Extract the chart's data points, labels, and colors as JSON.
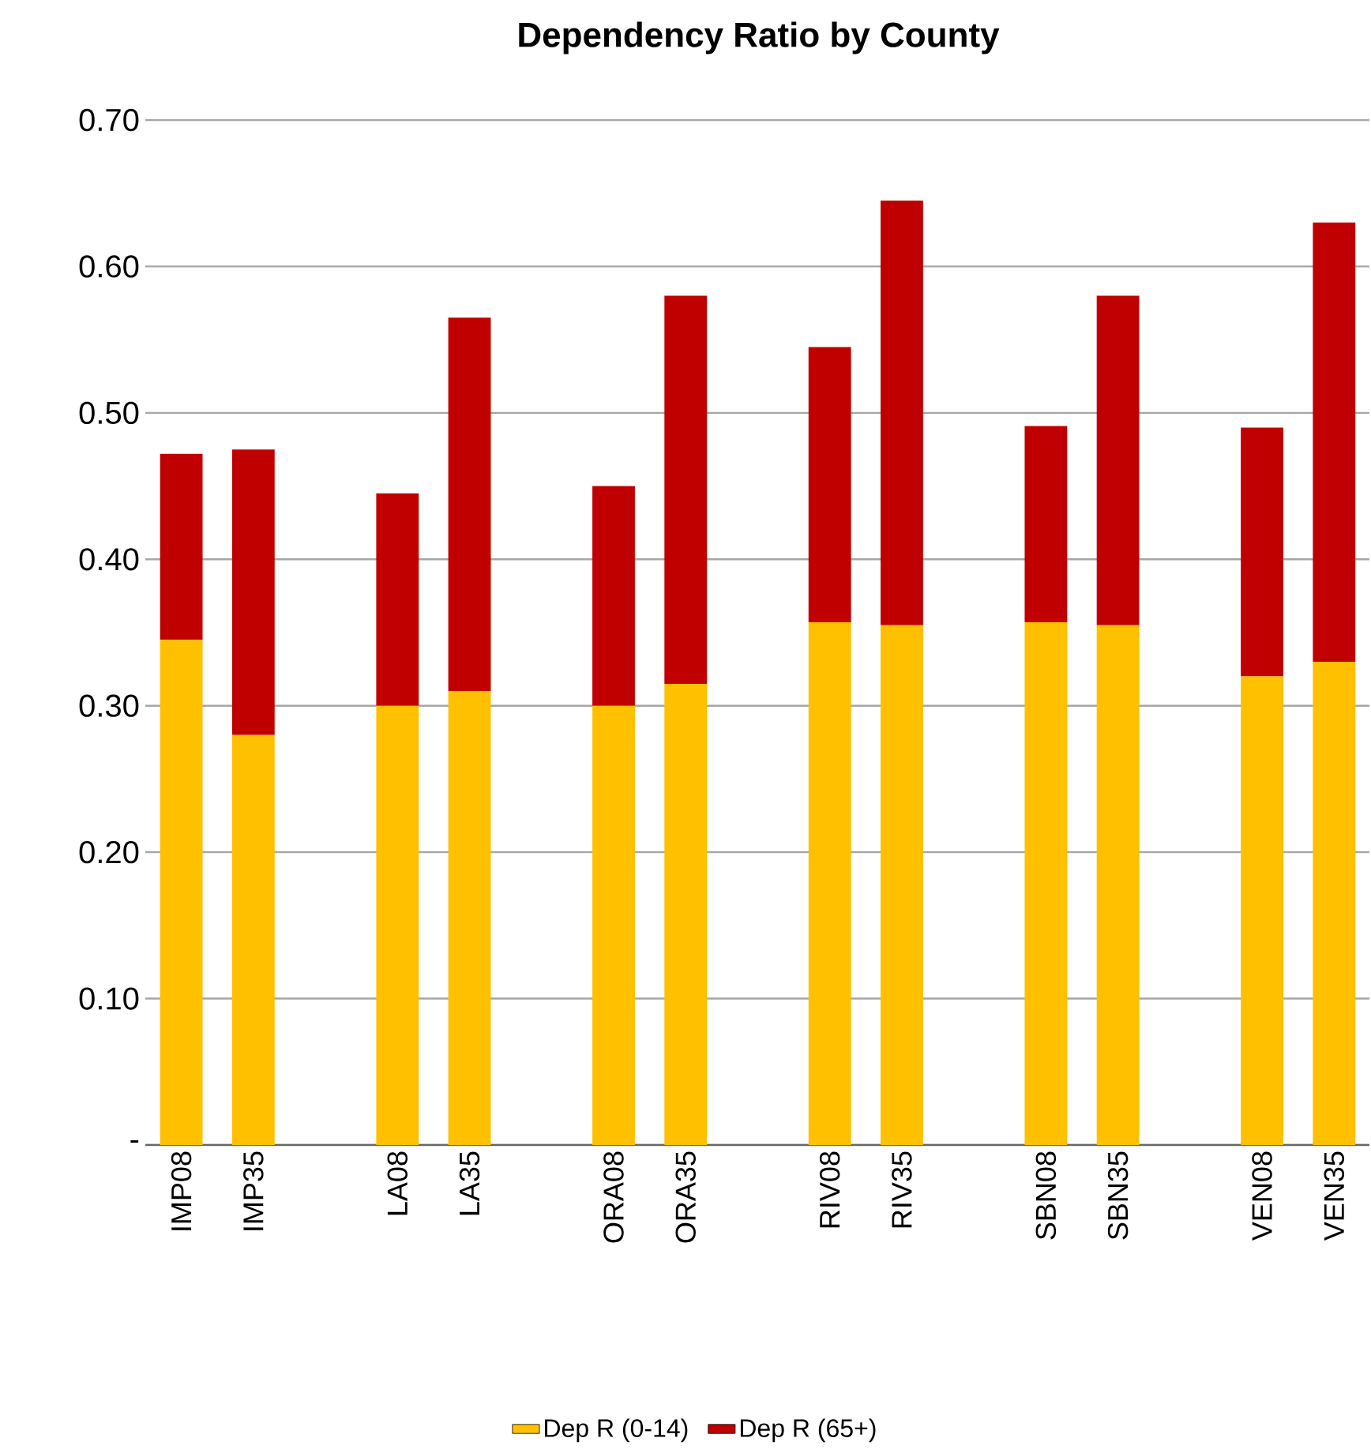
{
  "chart_data": {
    "type": "bar",
    "title": "Dependency Ratio by County",
    "stacked": true,
    "categories": [
      "IMP08",
      "IMP35",
      null,
      "LA08",
      "LA35",
      null,
      "ORA08",
      "ORA35",
      null,
      "RIV08",
      "RIV35",
      null,
      "SBN08",
      "SBN35",
      null,
      "VEN08",
      "VEN35"
    ],
    "series": [
      {
        "name": "Dep R (0-14)",
        "color": "#ffc000",
        "values": [
          0.345,
          0.28,
          null,
          0.3,
          0.31,
          null,
          0.3,
          0.315,
          null,
          0.357,
          0.355,
          null,
          0.357,
          0.355,
          null,
          0.32,
          0.33
        ]
      },
      {
        "name": "Dep R (65+)",
        "color": "#c00000",
        "values": [
          0.127,
          0.195,
          null,
          0.145,
          0.255,
          null,
          0.15,
          0.265,
          null,
          0.188,
          0.29,
          null,
          0.134,
          0.225,
          null,
          0.17,
          0.3
        ]
      }
    ],
    "ylim": [
      0,
      0.7
    ],
    "yticks": [
      {
        "value": 0,
        "label": "-"
      },
      {
        "value": 0.1,
        "label": "0.10"
      },
      {
        "value": 0.2,
        "label": "0.20"
      },
      {
        "value": 0.3,
        "label": "0.30"
      },
      {
        "value": 0.4,
        "label": "0.40"
      },
      {
        "value": 0.5,
        "label": "0.50"
      },
      {
        "value": 0.6,
        "label": "0.60"
      },
      {
        "value": 0.7,
        "label": "0.70"
      }
    ],
    "grid": "y",
    "legend": "bottom"
  }
}
